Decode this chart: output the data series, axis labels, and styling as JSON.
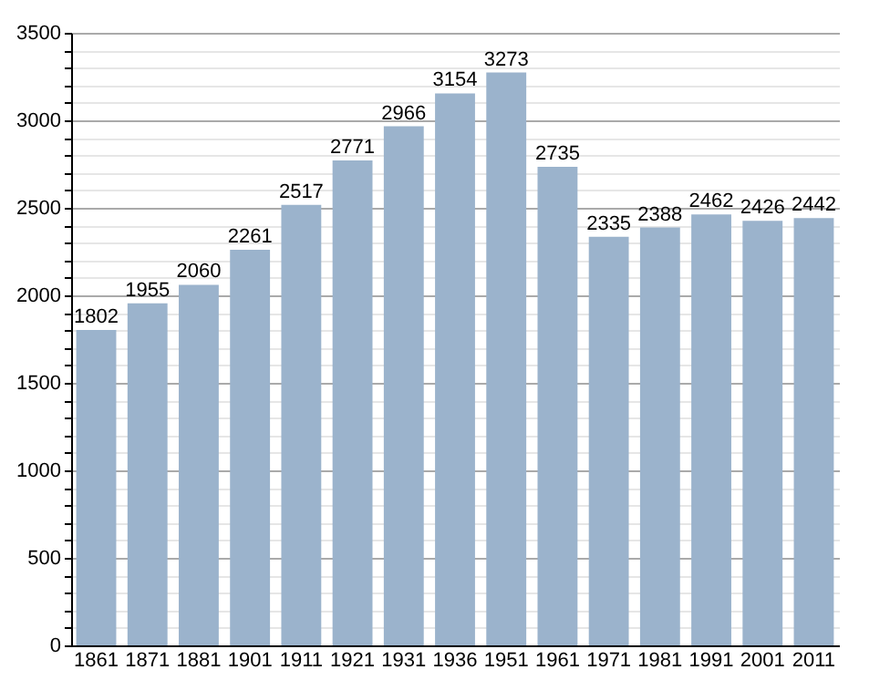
{
  "chart_data": {
    "type": "bar",
    "categories": [
      "1861",
      "1871",
      "1881",
      "1901",
      "1911",
      "1921",
      "1931",
      "1936",
      "1951",
      "1961",
      "1971",
      "1981",
      "1991",
      "2001",
      "2011"
    ],
    "values": [
      1802,
      1955,
      2060,
      2261,
      2517,
      2771,
      2966,
      3154,
      3273,
      2735,
      2335,
      2388,
      2462,
      2426,
      2442
    ],
    "color": "#9bb3cc",
    "ylim": [
      0,
      3500
    ],
    "yticks": [
      0,
      {
        "value": 100,
        "label": null
      },
      {
        "value": 200,
        "label": null
      },
      {
        "value": 300,
        "label": null
      },
      {
        "value": 400,
        "label": null
      },
      500,
      {
        "value": 600,
        "label": null
      },
      {
        "value": 700,
        "label": null
      },
      {
        "value": 800,
        "label": null
      },
      {
        "value": 900,
        "label": null
      },
      1000,
      {
        "value": 1100,
        "label": null
      },
      {
        "value": 1200,
        "label": null
      },
      {
        "value": 1300,
        "label": null
      },
      {
        "value": 1400,
        "label": null
      },
      1500,
      {
        "value": 1600,
        "label": null
      },
      {
        "value": 1700,
        "label": null
      },
      {
        "value": 1800,
        "label": null
      },
      {
        "value": 1900,
        "label": null
      },
      2000,
      {
        "value": 2100,
        "label": null
      },
      {
        "value": 2200,
        "label": null
      },
      {
        "value": 2300,
        "label": null
      },
      {
        "value": 2400,
        "label": null
      },
      2500,
      {
        "value": 2600,
        "label": null
      },
      {
        "value": 2700,
        "label": null
      },
      {
        "value": 2800,
        "label": null
      },
      {
        "value": 2900,
        "label": null
      },
      3000,
      {
        "value": 3100,
        "label": null
      },
      {
        "value": 3200,
        "label": null
      },
      {
        "value": 3300,
        "label": null
      },
      {
        "value": 3400,
        "label": null
      },
      3500
    ],
    "grid": "y",
    "data_labels": true
  }
}
